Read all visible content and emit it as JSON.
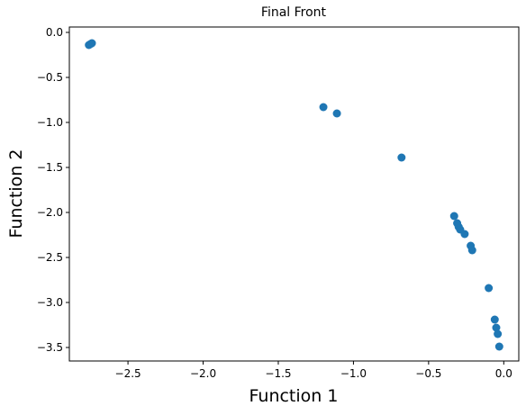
{
  "chart_data": {
    "type": "scatter",
    "title": "Final Front",
    "x_label": "Function 1",
    "y_label": "Function 2",
    "color": "#1f77b4",
    "x": [
      -2.75,
      -2.74,
      -2.76,
      -1.2,
      -1.11,
      -0.68,
      -0.33,
      -0.31,
      -0.3,
      -0.29,
      -0.26,
      -0.22,
      -0.21,
      -0.1,
      -0.06,
      -0.05,
      -0.04,
      -0.03
    ],
    "values": [
      -0.13,
      -0.12,
      -0.14,
      -0.83,
      -0.9,
      -1.39,
      -2.04,
      -2.12,
      -2.16,
      -2.19,
      -2.24,
      -2.37,
      -2.42,
      -2.84,
      -3.19,
      -3.28,
      -3.35,
      -3.49
    ],
    "xlim": [
      -2.89,
      0.1
    ],
    "ylim": [
      -3.65,
      0.06
    ],
    "xticks": [
      {
        "value": -2.5,
        "label": "−2.5"
      },
      {
        "value": -2.0,
        "label": "−2.0"
      },
      {
        "value": -1.5,
        "label": "−1.5"
      },
      {
        "value": -1.0,
        "label": "−1.0"
      },
      {
        "value": -0.5,
        "label": "−0.5"
      },
      {
        "value": 0,
        "label": "0.0"
      }
    ],
    "yticks": [
      {
        "value": 0,
        "label": "0.0"
      },
      {
        "value": -0.5,
        "label": "−0.5"
      },
      {
        "value": -1.0,
        "label": "−1.0"
      },
      {
        "value": -1.5,
        "label": "−1.5"
      },
      {
        "value": -2.0,
        "label": "−2.0"
      },
      {
        "value": -2.5,
        "label": "−2.5"
      },
      {
        "value": -3.0,
        "label": "−3.0"
      },
      {
        "value": -3.5,
        "label": "−3.5"
      }
    ]
  }
}
